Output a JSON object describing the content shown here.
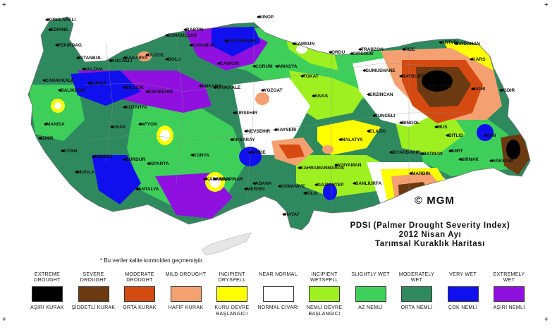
{
  "cities": [
    {
      "name": "KIRKLARELI"
    },
    {
      "name": "EDIRNE"
    },
    {
      "name": "TEKIRDAG"
    },
    {
      "name": "ISTANBUL"
    },
    {
      "name": "KOCAELI"
    },
    {
      "name": "SAKARYA"
    },
    {
      "name": "DUZCE"
    },
    {
      "name": "BOLU"
    },
    {
      "name": "YALOVA"
    },
    {
      "name": "BARTIN"
    },
    {
      "name": "ZONGULDAK"
    },
    {
      "name": "KARABUK"
    },
    {
      "name": "KASTAMONU"
    },
    {
      "name": "SINOP"
    },
    {
      "name": "SAMSUN"
    },
    {
      "name": "ORDU"
    },
    {
      "name": "GIRESUN"
    },
    {
      "name": "TRABZON"
    },
    {
      "name": "RIZE"
    },
    {
      "name": "ARTVIN"
    },
    {
      "name": "ARDAHAN"
    },
    {
      "name": "KARS"
    },
    {
      "name": "IGDIR"
    },
    {
      "name": "AGRI"
    },
    {
      "name": "ERZURUM"
    },
    {
      "name": "BAYBURT"
    },
    {
      "name": "GUMUSHANE"
    },
    {
      "name": "ERZINCAN"
    },
    {
      "name": "TUNCELI"
    },
    {
      "name": "BINGOL"
    },
    {
      "name": "MUS"
    },
    {
      "name": "BITLIS"
    },
    {
      "name": "VAN"
    },
    {
      "name": "HAKKARI"
    },
    {
      "name": "SIRNAK"
    },
    {
      "name": "SIIRT"
    },
    {
      "name": "BATMAN"
    },
    {
      "name": "MARDIN"
    },
    {
      "name": "DIYARBAKIR"
    },
    {
      "name": "SANLIURFA"
    },
    {
      "name": "ADIYAMAN"
    },
    {
      "name": "MALATYA"
    },
    {
      "name": "ELAZIG"
    },
    {
      "name": "KAHRAMANMARAS"
    },
    {
      "name": "GAZIANTEP"
    },
    {
      "name": "KILIS"
    },
    {
      "name": "HATAY"
    },
    {
      "name": "OSMANIYE"
    },
    {
      "name": "ADANA"
    },
    {
      "name": "MERSIN"
    },
    {
      "name": "KARAMAN"
    },
    {
      "name": "NIGDE"
    },
    {
      "name": "KAYSERI"
    },
    {
      "name": "SIVAS"
    },
    {
      "name": "TOKAT"
    },
    {
      "name": "AMASYA"
    },
    {
      "name": "CORUM"
    },
    {
      "name": "YOZGAT"
    },
    {
      "name": "KIRSEHIR"
    },
    {
      "name": "NEVSEHIR"
    },
    {
      "name": "AKSARAY"
    },
    {
      "name": "KIRIKKALE"
    },
    {
      "name": "ANKARA"
    },
    {
      "name": "CANKIRI"
    },
    {
      "name": "ESKISEHIR"
    },
    {
      "name": "BILECIK"
    },
    {
      "name": "BURSA"
    },
    {
      "name": "BALIKESIR"
    },
    {
      "name": "CANAKKALE"
    },
    {
      "name": "KUTAHYA"
    },
    {
      "name": "USAK"
    },
    {
      "name": "AFYON"
    },
    {
      "name": "MANISA"
    },
    {
      "name": "IZMIR"
    },
    {
      "name": "AYDIN"
    },
    {
      "name": "DENIZLI"
    },
    {
      "name": "MUGLA"
    },
    {
      "name": "BURDUR"
    },
    {
      "name": "ISPARTA"
    },
    {
      "name": "ANTALYA"
    },
    {
      "name": "KONYA"
    },
    {
      "name": "KARAPINAR"
    },
    {
      "name": "ERZURUM2"
    }
  ],
  "map_title": {
    "line1": "PDSI (Palmer Drought Severity Index)",
    "line2": "2012 Nisan Ayı",
    "line3": "Tarımsal Kuraklık Haritası"
  },
  "brand": "© MGM",
  "note": "* Bu veriler kalite kontrolden geçmemiştir.",
  "legend": [
    {
      "top": "EXTREME DROUGHT",
      "bottom": "AŞIRI KURAK",
      "color": "#000000"
    },
    {
      "top": "SEVERE DROUGHT",
      "bottom": "ŞİDDETLİ KURAK",
      "color": "#6b3a10"
    },
    {
      "top": "MODERATE DROUGHT",
      "bottom": "ORTA KURAK",
      "color": "#d44a10"
    },
    {
      "top": "MILD DROUGHT",
      "bottom": "HAFİF KURAK",
      "color": "#f5a070"
    },
    {
      "top": "INCIPIENT DRYSPELL",
      "bottom": "KURU DEVRE BAŞLANGICI",
      "color": "#ffff00"
    },
    {
      "top": "NEAR NORMAL",
      "bottom": "NORMAL CİVARI",
      "color": "#ffffff"
    },
    {
      "top": "INCIPIENT WETSPELL",
      "bottom": "NEMLİ DEVRE BAŞLANGICI",
      "color": "#9ef020"
    },
    {
      "top": "SLIGHTLY WET",
      "bottom": "AZ NEMLİ",
      "color": "#3ecf5a"
    },
    {
      "top": "MODERATELY WET",
      "bottom": "ORTA NEMLİ",
      "color": "#2e8a5e"
    },
    {
      "top": "VERY WET",
      "bottom": "ÇOK NEMLİ",
      "color": "#1010ee"
    },
    {
      "top": "EXTREMELY WET",
      "bottom": "AŞIRI NEMLİ",
      "color": "#9010e0"
    }
  ],
  "colors": {
    "extreme_drought": "#000000",
    "severe_drought": "#6b3a10",
    "moderate_drought": "#d44a10",
    "mild_drought": "#f5a070",
    "incipient_dryspell": "#ffff00",
    "near_normal": "#ffffff",
    "incipient_wetspell": "#9ef020",
    "slightly_wet": "#3ecf5a",
    "moderately_wet": "#2e8a5e",
    "very_wet": "#1010ee",
    "extremely_wet": "#9010e0"
  }
}
